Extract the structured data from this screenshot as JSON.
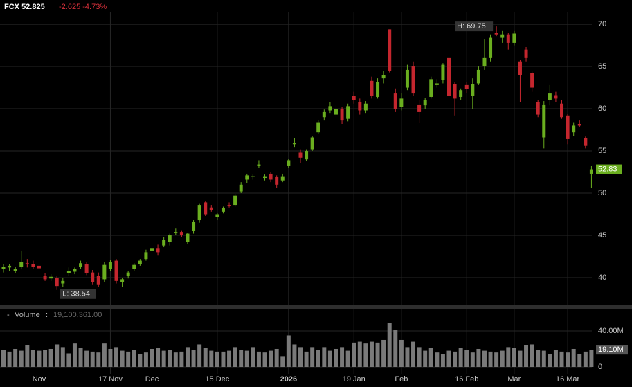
{
  "chart_data": {
    "type": "candlestick",
    "title": "FCX",
    "last_price": 52.825,
    "change": -2.625,
    "change_pct": {
      "value": -4.73,
      "label": "-4.73%"
    },
    "categories": [
      null,
      null,
      null,
      null,
      null,
      null,
      "Nov",
      null,
      null,
      null,
      null,
      null,
      null,
      null,
      null,
      null,
      null,
      null,
      "17 Nov",
      null,
      null,
      null,
      null,
      null,
      null,
      "Dec",
      null,
      null,
      null,
      null,
      null,
      null,
      null,
      null,
      null,
      null,
      "15 Dec",
      null,
      null,
      null,
      null,
      null,
      null,
      null,
      null,
      null,
      null,
      null,
      "2026",
      null,
      null,
      null,
      null,
      null,
      null,
      null,
      null,
      null,
      null,
      "19 Jan",
      null,
      null,
      null,
      null,
      null,
      null,
      null,
      "Feb",
      null,
      null,
      null,
      null,
      null,
      null,
      null,
      null,
      null,
      null,
      "16 Feb",
      null,
      null,
      null,
      null,
      null,
      null,
      null,
      "Mar",
      null,
      null,
      null,
      null,
      null,
      null,
      null,
      null,
      "16 Mar",
      null,
      null,
      null,
      null
    ],
    "open": [
      41.0,
      41.2,
      40.8,
      41.3,
      41.7,
      41.6,
      41.4,
      40.2,
      39.9,
      40.0,
      39.3,
      40.5,
      40.7,
      41.3,
      41.6,
      40.6,
      40.2,
      39.8,
      41.0,
      42.0,
      39.5,
      40.2,
      41.0,
      41.6,
      42.2,
      43.2,
      43.5,
      43.8,
      44.2,
      45.3,
      45.4,
      44.2,
      45.5,
      46.8,
      48.9,
      48.3,
      47.2,
      47.8,
      48.6,
      48.6,
      50.2,
      51.6,
      51.9,
      53.2,
      51.8,
      52.3,
      51.9,
      51.5,
      53.2,
      55.8,
      54.8,
      54.0,
      55.2,
      57.2,
      59.0,
      59.8,
      59.3,
      60.0,
      58.8,
      61.5,
      60.8,
      59.8,
      63.3,
      61.4,
      63.6,
      69.4,
      61.8,
      60.2,
      62.5,
      65.0,
      60.5,
      60.4,
      61.4,
      62.8,
      63.4,
      66.0,
      62.9,
      61.4,
      62.8,
      61.5,
      63.0,
      65.0,
      66.0,
      69.0,
      68.4,
      68.8,
      67.8,
      65.6,
      67.0,
      64.2,
      60.8,
      56.6,
      61.0,
      61.6,
      60.6,
      59.2,
      57.2,
      58.2,
      56.5,
      52.3
    ],
    "high": [
      41.6,
      41.6,
      41.3,
      43.2,
      42.2,
      42.0,
      41.6,
      40.5,
      40.4,
      40.2,
      40.0,
      41.2,
      41.2,
      42.0,
      41.8,
      40.9,
      40.6,
      41.8,
      42.1,
      42.2,
      40.0,
      40.8,
      41.7,
      42.2,
      43.3,
      43.8,
      43.9,
      44.8,
      45.2,
      45.8,
      45.6,
      45.3,
      46.8,
      48.8,
      49.0,
      48.6,
      47.7,
      48.4,
      48.9,
      49.9,
      51.3,
      52.3,
      52.2,
      53.9,
      52.2,
      52.5,
      52.1,
      52.3,
      54.1,
      56.5,
      55.2,
      55.2,
      56.8,
      58.6,
      59.9,
      60.8,
      60.5,
      60.2,
      60.6,
      62.0,
      61.2,
      60.9,
      63.8,
      63.6,
      64.5,
      69.4,
      62.4,
      61.8,
      65.2,
      65.6,
      61.0,
      61.3,
      63.8,
      63.5,
      65.4,
      66.0,
      63.2,
      62.4,
      63.2,
      63.6,
      65.0,
      68.2,
      68.8,
      69.75,
      69.2,
      69.0,
      69.2,
      65.8,
      67.3,
      64.4,
      61.0,
      60.9,
      62.8,
      62.0,
      61.0,
      59.4,
      58.4,
      58.6,
      56.7,
      53.2
    ],
    "low": [
      40.6,
      40.8,
      40.5,
      41.0,
      41.2,
      41.0,
      40.9,
      39.6,
      39.6,
      38.54,
      38.9,
      40.2,
      40.4,
      41.0,
      40.3,
      39.2,
      38.9,
      39.5,
      40.8,
      39.3,
      38.9,
      39.9,
      40.8,
      41.4,
      42.0,
      42.9,
      42.6,
      43.6,
      43.8,
      45.0,
      44.8,
      44.0,
      45.2,
      46.5,
      47.3,
      47.8,
      46.8,
      47.6,
      48.3,
      48.4,
      50.0,
      51.2,
      51.6,
      53.0,
      51.5,
      51.3,
      50.6,
      51.3,
      53.0,
      55.4,
      53.6,
      53.8,
      55.0,
      57.0,
      58.6,
      59.5,
      59.0,
      58.2,
      58.5,
      60.6,
      59.3,
      59.5,
      61.2,
      61.2,
      63.0,
      64.3,
      59.6,
      59.8,
      62.2,
      61.5,
      58.3,
      60.0,
      61.2,
      62.5,
      63.0,
      61.2,
      59.2,
      61.0,
      61.8,
      60.0,
      62.8,
      64.6,
      65.6,
      68.6,
      67.8,
      67.0,
      67.5,
      60.8,
      65.6,
      62.0,
      59.0,
      55.3,
      60.4,
      60.8,
      58.8,
      55.8,
      56.8,
      57.8,
      55.3,
      50.6
    ],
    "close": [
      41.3,
      41.4,
      41.0,
      41.8,
      41.6,
      41.3,
      41.1,
      39.8,
      40.1,
      39.0,
      39.6,
      40.8,
      41.0,
      41.7,
      40.5,
      39.5,
      39.2,
      41.5,
      41.8,
      39.6,
      39.8,
      40.6,
      41.5,
      42.0,
      43.0,
      43.5,
      43.0,
      44.5,
      45.0,
      45.4,
      45.0,
      45.2,
      46.6,
      48.6,
      47.5,
      48.0,
      47.5,
      48.2,
      48.5,
      49.7,
      51.0,
      52.1,
      52.0,
      53.4,
      52.0,
      51.6,
      51.0,
      52.0,
      53.9,
      55.9,
      54.2,
      55.0,
      56.6,
      58.4,
      59.6,
      60.3,
      60.0,
      58.6,
      60.3,
      61.0,
      59.8,
      60.6,
      61.5,
      63.2,
      64.0,
      64.5,
      60.0,
      61.2,
      64.6,
      61.8,
      59.6,
      61.0,
      63.5,
      63.0,
      65.2,
      61.5,
      61.2,
      62.2,
      62.3,
      62.9,
      64.6,
      66.0,
      68.4,
      68.8,
      68.8,
      67.8,
      68.9,
      64.0,
      66.0,
      62.5,
      59.3,
      60.5,
      61.8,
      61.2,
      59.0,
      56.4,
      58.0,
      58.0,
      55.6,
      52.825
    ],
    "volume": [
      19,
      17,
      20,
      18,
      24,
      19,
      18,
      19,
      20,
      25,
      22,
      15,
      26,
      21,
      18,
      17,
      16,
      26,
      20,
      22,
      18,
      17,
      19,
      14,
      16,
      20,
      21,
      18,
      19,
      16,
      17,
      22,
      19,
      25,
      21,
      18,
      17,
      17,
      18,
      22,
      19,
      18,
      22,
      17,
      16,
      18,
      20,
      12,
      35,
      25,
      22,
      17,
      22,
      19,
      22,
      18,
      20,
      22,
      18,
      27,
      28,
      26,
      28,
      27,
      30,
      49,
      41,
      30,
      22,
      28,
      22,
      18,
      21,
      16,
      14,
      18,
      17,
      21,
      19,
      16,
      20,
      18,
      17,
      16,
      18,
      22,
      21,
      18,
      24,
      25,
      19,
      18,
      14,
      19,
      17,
      16,
      20,
      14,
      17,
      19.100361
    ],
    "up_color": "#6aae1f",
    "down_color": "#c4262e",
    "volume_color": "#7a7a7a",
    "ylim": [
      36.8,
      71.4
    ],
    "yticks": [
      40,
      45,
      50,
      55,
      60,
      65,
      70
    ],
    "y2lim": [
      0,
      51.5
    ],
    "y2ticks": [
      0,
      {
        "value": 40,
        "label": "40.00M"
      }
    ],
    "high_annotation": {
      "value": 69.75,
      "label": "H: 69.75"
    },
    "low_annotation": {
      "value": 38.54,
      "label": "L: 38.54"
    },
    "last_tag": {
      "value": 52.825,
      "label": "52.83"
    },
    "volume_title": "Volume",
    "volume_last": {
      "value": 19100361,
      "label": "19,100,361.00"
    },
    "volume_tag": {
      "value": 19.100361,
      "label": "19.10M"
    },
    "grid": true
  }
}
